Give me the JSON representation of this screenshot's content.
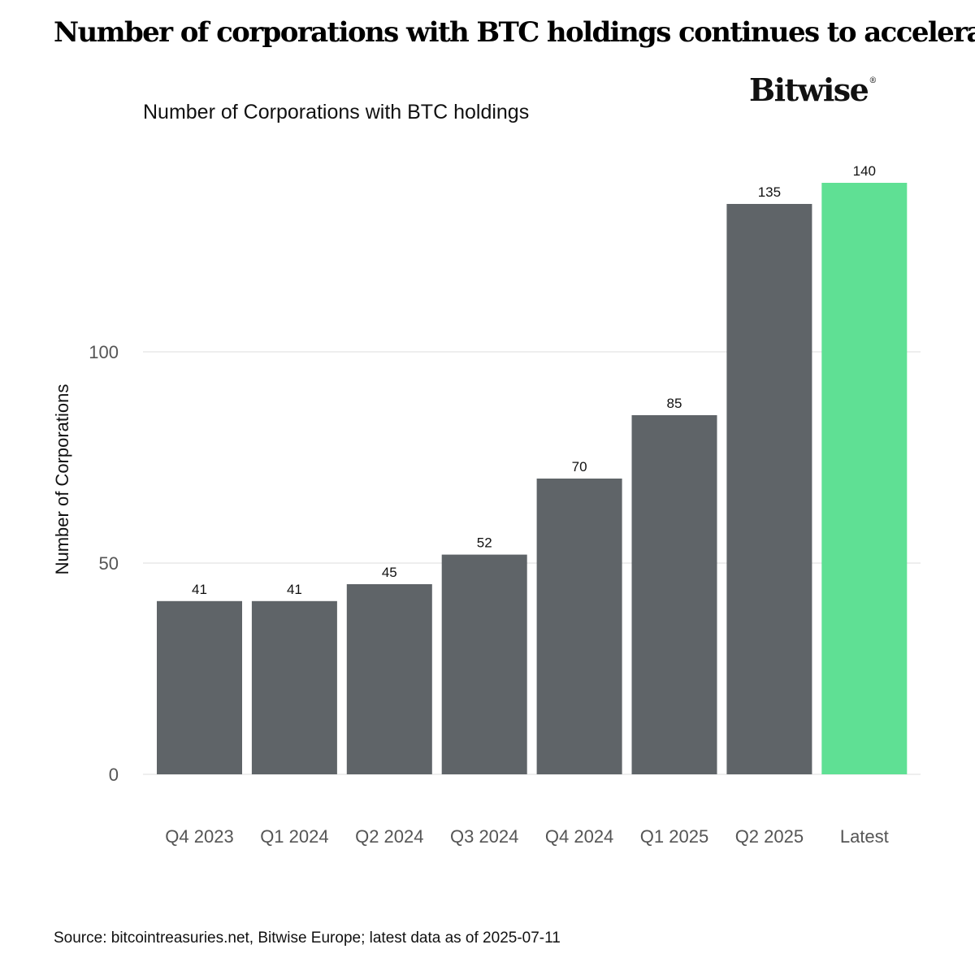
{
  "headline": "Number of corporations with BTC holdings continues to accelerate",
  "logo": {
    "text": "Bitwise",
    "mark": "®"
  },
  "source": "Source: bitcointreasuries.net, Bitwise Europe; latest data as of 2025-07-11",
  "chart_data": {
    "type": "bar",
    "title": "Number of Corporations with BTC holdings",
    "xlabel": "",
    "ylabel": "Number of Corporations",
    "categories": [
      "Q4 2023",
      "Q1 2024",
      "Q2 2024",
      "Q3 2024",
      "Q4 2024",
      "Q1 2025",
      "Q2 2025",
      "Latest"
    ],
    "values": [
      41,
      41,
      45,
      52,
      70,
      85,
      135,
      140
    ],
    "ylim": [
      0,
      140
    ],
    "yticks": [
      0,
      50,
      100
    ],
    "grid": true,
    "colors": {
      "default": "#5f6468",
      "highlight": "#5fe094",
      "grid": "#dddddd"
    },
    "highlight_category": "Latest"
  }
}
